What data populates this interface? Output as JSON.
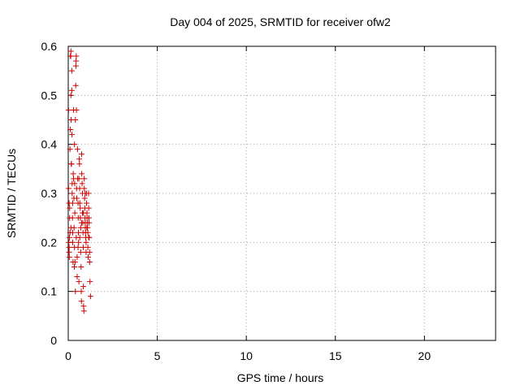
{
  "chart_data": {
    "type": "scatter",
    "title": "Day 004 of 2025, SRMTID for receiver ofw2",
    "xlabel": "GPS time / hours",
    "ylabel": "SRMTID / TECUs",
    "xlim": [
      0,
      24
    ],
    "ylim": [
      0,
      0.6
    ],
    "xticks": [
      0,
      5,
      10,
      15,
      20
    ],
    "yticks": [
      0,
      0.1,
      0.2,
      0.3,
      0.4,
      0.5,
      0.6
    ],
    "ytick_labels": [
      "0",
      "0.1",
      "0.2",
      "0.3",
      "0.4",
      "0.5",
      "0.6"
    ],
    "grid": true,
    "marker": "+",
    "series": [
      {
        "name": "SRMTID",
        "color": "#cc0000",
        "points": [
          [
            0.02,
            0.31
          ],
          [
            0.02,
            0.47
          ],
          [
            0.03,
            0.2
          ],
          [
            0.05,
            0.18
          ],
          [
            0.05,
            0.19
          ],
          [
            0.06,
            0.17
          ],
          [
            0.07,
            0.21
          ],
          [
            0.08,
            0.25
          ],
          [
            0.08,
            0.27
          ],
          [
            0.1,
            0.22
          ],
          [
            0.1,
            0.39
          ],
          [
            0.12,
            0.43
          ],
          [
            0.12,
            0.58
          ],
          [
            0.14,
            0.58
          ],
          [
            0.15,
            0.59
          ],
          [
            0.15,
            0.5
          ],
          [
            0.16,
            0.45
          ],
          [
            0.17,
            0.36
          ],
          [
            0.18,
            0.36
          ],
          [
            0.2,
            0.55
          ],
          [
            0.2,
            0.51
          ],
          [
            0.21,
            0.42
          ],
          [
            0.22,
            0.32
          ],
          [
            0.22,
            0.3
          ],
          [
            0.24,
            0.25
          ],
          [
            0.25,
            0.22
          ],
          [
            0.25,
            0.2
          ],
          [
            0.27,
            0.16
          ],
          [
            0.28,
            0.34
          ],
          [
            0.3,
            0.47
          ],
          [
            0.3,
            0.33
          ],
          [
            0.32,
            0.29
          ],
          [
            0.33,
            0.23
          ],
          [
            0.34,
            0.15
          ],
          [
            0.35,
            0.4
          ],
          [
            0.36,
            0.32
          ],
          [
            0.37,
            0.26
          ],
          [
            0.38,
            0.16
          ],
          [
            0.4,
            0.1
          ],
          [
            0.4,
            0.45
          ],
          [
            0.42,
            0.52
          ],
          [
            0.43,
            0.56
          ],
          [
            0.44,
            0.57
          ],
          [
            0.45,
            0.58
          ],
          [
            0.46,
            0.47
          ],
          [
            0.47,
            0.31
          ],
          [
            0.48,
            0.29
          ],
          [
            0.5,
            0.17
          ],
          [
            0.5,
            0.13
          ],
          [
            0.52,
            0.39
          ],
          [
            0.53,
            0.33
          ],
          [
            0.55,
            0.28
          ],
          [
            0.56,
            0.25
          ],
          [
            0.57,
            0.22
          ],
          [
            0.58,
            0.2
          ],
          [
            0.6,
            0.12
          ],
          [
            0.6,
            0.33
          ],
          [
            0.62,
            0.37
          ],
          [
            0.63,
            0.36
          ],
          [
            0.64,
            0.31
          ],
          [
            0.65,
            0.28
          ],
          [
            0.67,
            0.27
          ],
          [
            0.68,
            0.25
          ],
          [
            0.7,
            0.23
          ],
          [
            0.7,
            0.18
          ],
          [
            0.72,
            0.15
          ],
          [
            0.73,
            0.1
          ],
          [
            0.74,
            0.08
          ],
          [
            0.75,
            0.38
          ],
          [
            0.76,
            0.34
          ],
          [
            0.78,
            0.32
          ],
          [
            0.8,
            0.3
          ],
          [
            0.8,
            0.26
          ],
          [
            0.82,
            0.24
          ],
          [
            0.83,
            0.22
          ],
          [
            0.84,
            0.19
          ],
          [
            0.85,
            0.11
          ],
          [
            0.86,
            0.07
          ],
          [
            0.88,
            0.06
          ],
          [
            0.9,
            0.33
          ],
          [
            0.9,
            0.31
          ],
          [
            0.92,
            0.29
          ],
          [
            0.93,
            0.27
          ],
          [
            0.94,
            0.25
          ],
          [
            0.95,
            0.24
          ],
          [
            0.96,
            0.23
          ],
          [
            0.97,
            0.22
          ],
          [
            0.98,
            0.21
          ],
          [
            1.0,
            0.2
          ],
          [
            1.0,
            0.18
          ],
          [
            1.02,
            0.3
          ],
          [
            1.03,
            0.28
          ],
          [
            1.05,
            0.26
          ],
          [
            1.06,
            0.25
          ],
          [
            1.07,
            0.24
          ],
          [
            1.08,
            0.23
          ],
          [
            1.1,
            0.22
          ],
          [
            1.1,
            0.19
          ],
          [
            1.12,
            0.17
          ],
          [
            1.14,
            0.3
          ],
          [
            1.15,
            0.27
          ],
          [
            1.16,
            0.25
          ],
          [
            1.17,
            0.24
          ],
          [
            1.18,
            0.21
          ],
          [
            1.2,
            0.18
          ],
          [
            1.2,
            0.16
          ],
          [
            1.22,
            0.12
          ],
          [
            1.25,
            0.09
          ],
          [
            0.35,
            0.19
          ],
          [
            0.45,
            0.21
          ],
          [
            0.55,
            0.19
          ],
          [
            0.65,
            0.21
          ],
          [
            0.75,
            0.24
          ],
          [
            0.85,
            0.26
          ],
          [
            0.95,
            0.3
          ],
          [
            1.05,
            0.23
          ],
          [
            1.15,
            0.21
          ],
          [
            0.25,
            0.28
          ],
          [
            0.15,
            0.23
          ],
          [
            0.05,
            0.28
          ]
        ]
      }
    ]
  }
}
